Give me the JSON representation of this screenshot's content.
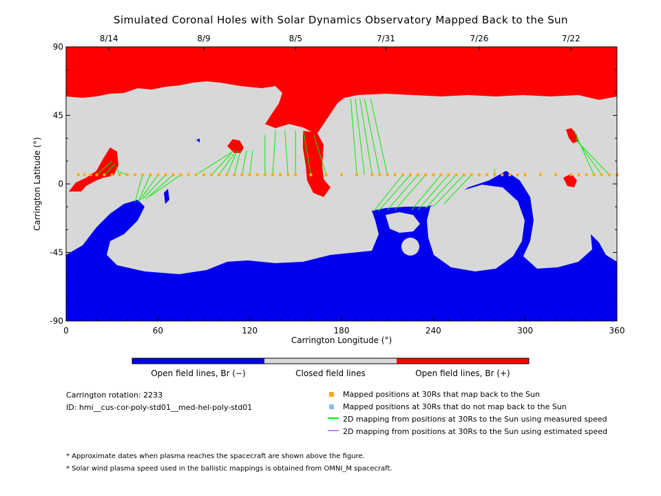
{
  "chart_data": {
    "type": "heatmap",
    "title": "Simulated Coronal Holes with Solar Dynamics Observatory Mapped Back to the Sun",
    "xlabel": "Carrington Longitude (°)",
    "ylabel": "Carrington Latitude (°)",
    "xlim": [
      0,
      360
    ],
    "ylim": [
      -90,
      90
    ],
    "x_ticks": [
      0,
      60,
      120,
      180,
      240,
      300,
      360
    ],
    "y_ticks": [
      -90,
      -45,
      0,
      45,
      90
    ],
    "top_date_ticks": [
      {
        "label": "8/14",
        "lon": 28
      },
      {
        "label": "8/9",
        "lon": 90
      },
      {
        "label": "8/5",
        "lon": 150
      },
      {
        "label": "7/31",
        "lon": 209
      },
      {
        "label": "7/26",
        "lon": 270
      },
      {
        "label": "7/22",
        "lon": 330
      }
    ],
    "colorbar": [
      {
        "label": "Open field lines, Br (−)",
        "color": "#0000ee"
      },
      {
        "label": "Closed field lines",
        "color": "#d8d8d8"
      },
      {
        "label": "Open field lines, Br (+)",
        "color": "#ff0000"
      }
    ],
    "mapped_points_lat": 6,
    "mapped_points_lon": [
      8,
      12,
      16,
      20,
      25,
      30,
      35,
      40,
      45,
      50,
      55,
      60,
      65,
      70,
      75,
      80,
      85,
      90,
      95,
      100,
      105,
      110,
      115,
      120,
      125,
      130,
      135,
      140,
      145,
      150,
      160,
      170,
      180,
      190,
      200,
      205,
      210,
      215,
      220,
      225,
      230,
      235,
      240,
      245,
      250,
      255,
      260,
      265,
      270,
      275,
      280,
      285,
      290,
      295,
      300,
      310,
      320,
      330,
      335,
      340,
      345,
      350,
      355,
      360
    ],
    "mapping_lines": [
      {
        "from_lon": 20,
        "to_lon": 30,
        "to_lat": 15
      },
      {
        "from_lon": 25,
        "to_lon": 32,
        "to_lat": 13
      },
      {
        "from_lon": 35,
        "to_lon": 33,
        "to_lat": 11
      },
      {
        "from_lon": 40,
        "to_lon": 35,
        "to_lat": 8
      },
      {
        "from_lon": 50,
        "to_lon": 45,
        "to_lat": -12
      },
      {
        "from_lon": 55,
        "to_lon": 47,
        "to_lat": -12
      },
      {
        "from_lon": 60,
        "to_lon": 48,
        "to_lat": -11
      },
      {
        "from_lon": 65,
        "to_lon": 50,
        "to_lat": -10
      },
      {
        "from_lon": 70,
        "to_lon": 52,
        "to_lat": -10
      },
      {
        "from_lon": 75,
        "to_lon": 55,
        "to_lat": -8
      },
      {
        "from_lon": 85,
        "to_lon": 110,
        "to_lat": 22
      },
      {
        "from_lon": 95,
        "to_lon": 108,
        "to_lat": 20
      },
      {
        "from_lon": 100,
        "to_lon": 110,
        "to_lat": 20
      },
      {
        "from_lon": 105,
        "to_lon": 112,
        "to_lat": 22
      },
      {
        "from_lon": 110,
        "to_lon": 114,
        "to_lat": 22
      },
      {
        "from_lon": 115,
        "to_lon": 118,
        "to_lat": 22
      },
      {
        "from_lon": 120,
        "to_lon": 122,
        "to_lat": 22
      },
      {
        "from_lon": 130,
        "to_lon": 130,
        "to_lat": 32
      },
      {
        "from_lon": 135,
        "to_lon": 137,
        "to_lat": 35
      },
      {
        "from_lon": 145,
        "to_lon": 143,
        "to_lat": 35
      },
      {
        "from_lon": 150,
        "to_lon": 150,
        "to_lat": 35
      },
      {
        "from_lon": 160,
        "to_lon": 155,
        "to_lat": 35
      },
      {
        "from_lon": 170,
        "to_lon": 162,
        "to_lat": 32
      },
      {
        "from_lon": 190,
        "to_lon": 186,
        "to_lat": 56
      },
      {
        "from_lon": 195,
        "to_lon": 189,
        "to_lat": 56
      },
      {
        "from_lon": 200,
        "to_lon": 192,
        "to_lat": 56
      },
      {
        "from_lon": 205,
        "to_lon": 195,
        "to_lat": 56
      },
      {
        "from_lon": 210,
        "to_lon": 199,
        "to_lat": 56
      },
      {
        "from_lon": 220,
        "to_lon": 201,
        "to_lat": -18
      },
      {
        "from_lon": 225,
        "to_lon": 204,
        "to_lat": -18
      },
      {
        "from_lon": 230,
        "to_lon": 210,
        "to_lat": -17
      },
      {
        "from_lon": 235,
        "to_lon": 215,
        "to_lat": -17
      },
      {
        "from_lon": 245,
        "to_lon": 226,
        "to_lat": -17
      },
      {
        "from_lon": 250,
        "to_lon": 230,
        "to_lat": -17
      },
      {
        "from_lon": 255,
        "to_lon": 235,
        "to_lat": -16
      },
      {
        "from_lon": 260,
        "to_lon": 240,
        "to_lat": -15
      },
      {
        "from_lon": 265,
        "to_lon": 247,
        "to_lat": -13
      },
      {
        "from_lon": 280,
        "to_lon": 280,
        "to_lat": 10
      },
      {
        "from_lon": 345,
        "to_lon": 332,
        "to_lat": 35
      },
      {
        "from_lon": 350,
        "to_lon": 333,
        "to_lat": 30
      },
      {
        "from_lon": 355,
        "to_lon": 334,
        "to_lat": 28
      }
    ]
  },
  "info": {
    "rotation": "Carrington rotation: 2233",
    "id": "ID: hmi__cus-cor-poly-std01__med-hel-poly-std01"
  },
  "legend": [
    {
      "label": "Mapped positions at 30Rs that map back to the Sun",
      "color": "#ffaa00",
      "kind": "square"
    },
    {
      "label": "Mapped positions at 30Rs that do not map back to the Sun",
      "color": "#88bbee",
      "kind": "square"
    },
    {
      "label": "2D mapping from positions at 30Rs to the Sun using measured speed",
      "color": "#00ee00",
      "kind": "line"
    },
    {
      "label": "2D mapping from positions at 30Rs to the Sun using estimated speed",
      "color": "#bb88ee",
      "kind": "line"
    }
  ],
  "notes": [
    "* Approximate dates when plasma reaches the spacecraft are shown above the figure.",
    "* Solar wind plasma speed used in the ballistic mappings is obtained from OMNI_M spacecraft."
  ]
}
